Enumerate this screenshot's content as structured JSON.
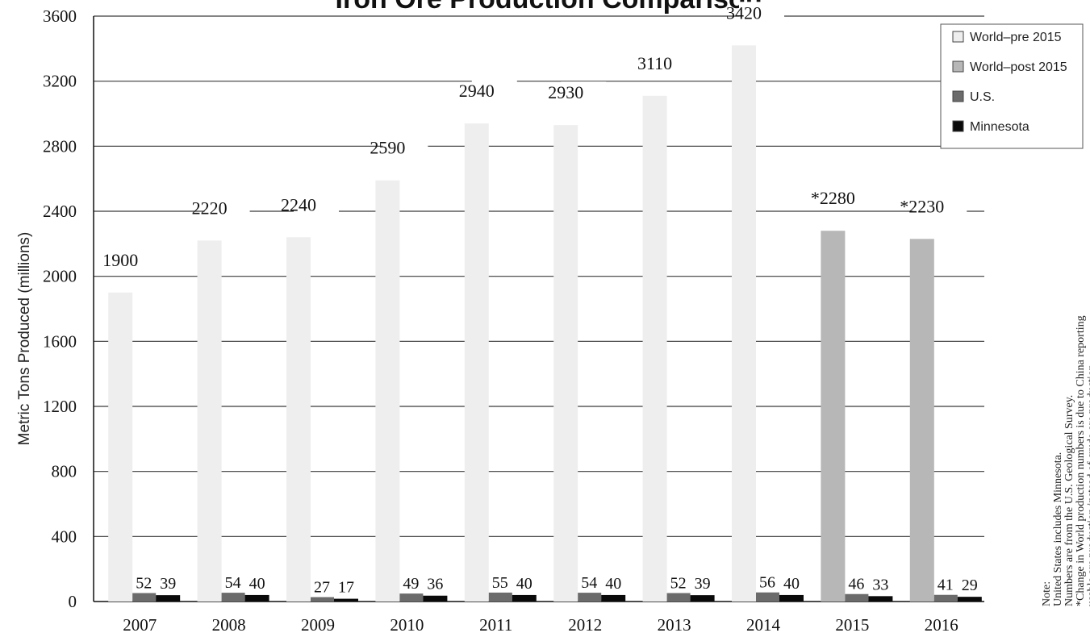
{
  "chart_data": {
    "type": "bar",
    "title": "Iron Ore Production Comparison",
    "ylabel": "Metric Tons Produced (millions)",
    "xlabel": "",
    "ylim": [
      0,
      3600
    ],
    "yticks": [
      0,
      400,
      800,
      1200,
      1600,
      2000,
      2400,
      2800,
      3200,
      3600
    ],
    "grid": true,
    "legend_position": "top-right",
    "categories": [
      "2007",
      "2008",
      "2009",
      "2010",
      "2011",
      "2012",
      "2013",
      "2014",
      "2015",
      "2016"
    ],
    "world": {
      "values": [
        1900,
        2220,
        2240,
        2590,
        2940,
        2930,
        3110,
        3420,
        2280,
        2230
      ],
      "labels": [
        "1900",
        "2220",
        "2240",
        "2590",
        "2940",
        "2930",
        "3110",
        "3420",
        "*2280",
        "*2230"
      ],
      "series_index": [
        0,
        0,
        0,
        0,
        0,
        0,
        0,
        0,
        1,
        1
      ]
    },
    "series": [
      {
        "name": "World–pre 2015",
        "color": "#eeeeee"
      },
      {
        "name": "World–post 2015",
        "color": "#b7b7b7"
      },
      {
        "name": "U.S.",
        "color": "#6b6b6b",
        "values": [
          52,
          54,
          27,
          49,
          55,
          54,
          52,
          56,
          46,
          41
        ]
      },
      {
        "name": "Minnesota",
        "color": "#0a0a0a",
        "values": [
          39,
          40,
          17,
          36,
          40,
          40,
          39,
          40,
          33,
          29
        ]
      }
    ],
    "notes": [
      "Note:",
      "United States includes Minnesota.",
      "Numbers are from the U.S. Geological Survey.",
      "*Change in World production numbers is due to China reporting",
      "usable ore production instead of crude ore production."
    ]
  }
}
